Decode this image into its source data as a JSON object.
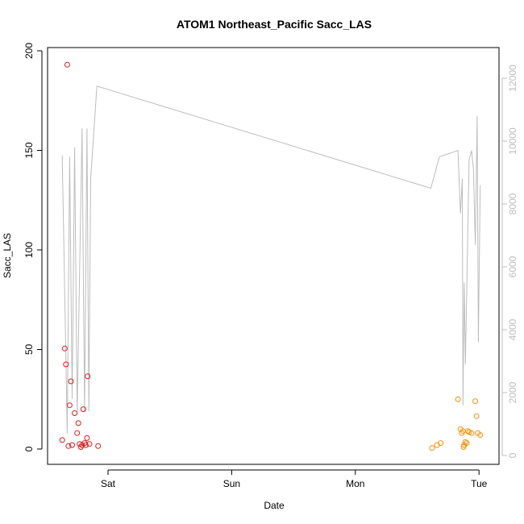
{
  "chart_data": {
    "type": "scatter",
    "title": "ATOM1 Northeast_Pacific Sacc_LAS",
    "xlabel": "Date",
    "ylabel": "Sacc_LAS",
    "x_tick_labels": [
      "Sat",
      "Sun",
      "Mon",
      "Tue"
    ],
    "x_range_days": [
      -0.45,
      3.05
    ],
    "y_left_lim": [
      0,
      200
    ],
    "y_left_ticks": [
      0,
      50,
      100,
      150,
      200
    ],
    "y_right_lim": [
      0,
      12000
    ],
    "y_right_ticks": [
      0,
      2000,
      4000,
      6000,
      8000,
      10000,
      12000
    ],
    "grid": false,
    "colors": {
      "red_points": "#e31a1c",
      "orange_points": "#ff8c00",
      "line": "#bdbdbd"
    },
    "series": [
      {
        "kind": "points",
        "color": "#e31a1c",
        "points": [
          {
            "x": -0.37,
            "y": 4.5
          },
          {
            "x": -0.35,
            "y": 50.5
          },
          {
            "x": -0.34,
            "y": 42.5
          },
          {
            "x": -0.33,
            "y": 193
          },
          {
            "x": -0.32,
            "y": 1.5
          },
          {
            "x": -0.31,
            "y": 22
          },
          {
            "x": -0.3,
            "y": 34
          },
          {
            "x": -0.29,
            "y": 2
          },
          {
            "x": -0.27,
            "y": 18
          },
          {
            "x": -0.25,
            "y": 8
          },
          {
            "x": -0.24,
            "y": 13
          },
          {
            "x": -0.23,
            "y": 2.5
          },
          {
            "x": -0.22,
            "y": 1
          },
          {
            "x": -0.21,
            "y": 2
          },
          {
            "x": -0.2,
            "y": 20
          },
          {
            "x": -0.19,
            "y": 3
          },
          {
            "x": -0.18,
            "y": 2
          },
          {
            "x": -0.17,
            "y": 5.5
          },
          {
            "x": -0.165,
            "y": 36.5
          },
          {
            "x": -0.15,
            "y": 2.5
          },
          {
            "x": -0.08,
            "y": 1.5
          }
        ]
      },
      {
        "kind": "points",
        "color": "#ff8c00",
        "points": [
          {
            "x": 2.62,
            "y": 0.5
          },
          {
            "x": 2.66,
            "y": 2
          },
          {
            "x": 2.69,
            "y": 3
          },
          {
            "x": 2.83,
            "y": 25
          },
          {
            "x": 2.85,
            "y": 10
          },
          {
            "x": 2.86,
            "y": 8
          },
          {
            "x": 2.87,
            "y": 9
          },
          {
            "x": 2.875,
            "y": 1
          },
          {
            "x": 2.88,
            "y": 2
          },
          {
            "x": 2.89,
            "y": 3.5
          },
          {
            "x": 2.9,
            "y": 3
          },
          {
            "x": 2.91,
            "y": 9
          },
          {
            "x": 2.92,
            "y": 8.5
          },
          {
            "x": 2.94,
            "y": 8
          },
          {
            "x": 2.97,
            "y": 24
          },
          {
            "x": 2.98,
            "y": 16.5
          },
          {
            "x": 2.99,
            "y": 8
          },
          {
            "x": 3.01,
            "y": 7
          }
        ]
      },
      {
        "kind": "line",
        "axis": "right",
        "color": "#bdbdbd",
        "points": [
          {
            "x": -0.37,
            "y": 9550
          },
          {
            "x": -0.33,
            "y": 700
          },
          {
            "x": -0.31,
            "y": 9500
          },
          {
            "x": -0.29,
            "y": 1800
          },
          {
            "x": -0.27,
            "y": 9800
          },
          {
            "x": -0.25,
            "y": 1300
          },
          {
            "x": -0.21,
            "y": 10400
          },
          {
            "x": -0.19,
            "y": 1400
          },
          {
            "x": -0.17,
            "y": 10400
          },
          {
            "x": -0.155,
            "y": 1400
          },
          {
            "x": -0.14,
            "y": 8800
          },
          {
            "x": -0.09,
            "y": 11750
          },
          {
            "x": 2.61,
            "y": 8500
          },
          {
            "x": 2.68,
            "y": 9500
          },
          {
            "x": 2.83,
            "y": 9700
          },
          {
            "x": 2.85,
            "y": 7700
          },
          {
            "x": 2.865,
            "y": 8800
          },
          {
            "x": 2.87,
            "y": 1600
          },
          {
            "x": 2.88,
            "y": 5500
          },
          {
            "x": 2.89,
            "y": 2900
          },
          {
            "x": 2.92,
            "y": 9400
          },
          {
            "x": 2.94,
            "y": 9700
          },
          {
            "x": 2.955,
            "y": 9100
          },
          {
            "x": 2.97,
            "y": 6700
          },
          {
            "x": 2.985,
            "y": 10800
          },
          {
            "x": 2.995,
            "y": 3600
          },
          {
            "x": 3.01,
            "y": 8600
          }
        ]
      }
    ]
  }
}
